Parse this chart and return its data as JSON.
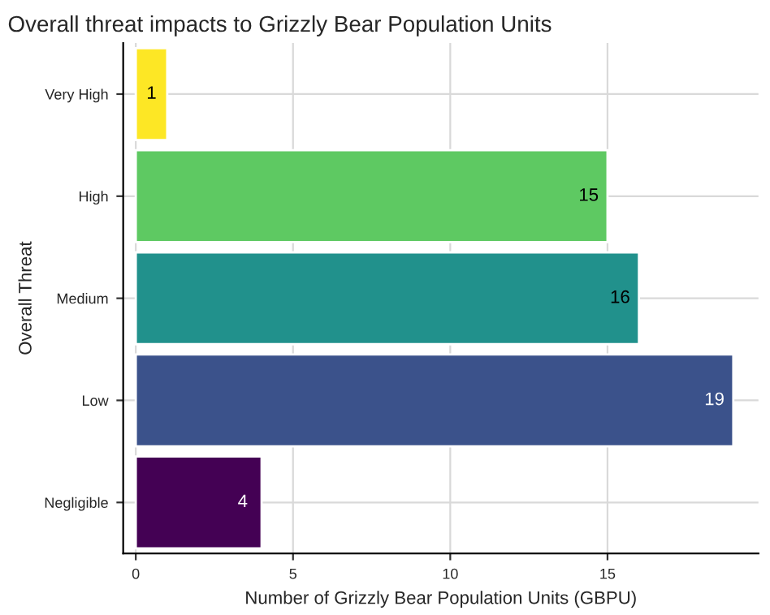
{
  "chart_data": {
    "type": "bar",
    "orientation": "horizontal",
    "title": "Overall threat impacts to Grizzly Bear Population Units",
    "xlabel": "Number of Grizzly Bear Population Units (GBPU)",
    "ylabel": "Overall Threat",
    "categories": [
      "Very High",
      "High",
      "Medium",
      "Low",
      "Negligible"
    ],
    "values": [
      1,
      15,
      16,
      19,
      4
    ],
    "colors": [
      "#fde725",
      "#5ec962",
      "#21918c",
      "#3b528b",
      "#440154"
    ],
    "xlim": [
      -0.4,
      19.8
    ],
    "xticks": [
      0,
      5,
      10,
      15
    ],
    "grid": true,
    "data_labels": true
  }
}
